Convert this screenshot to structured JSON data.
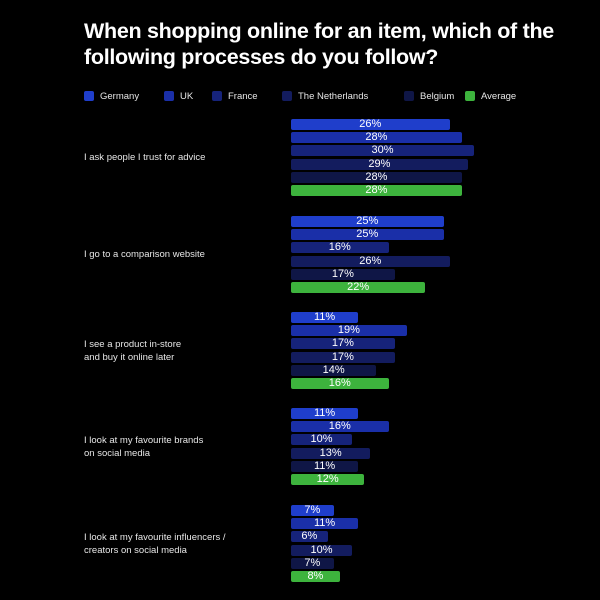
{
  "chart_data": {
    "type": "bar",
    "title": "When shopping online for an item, which of the following processes do you follow?",
    "categories": [
      "I ask people I trust for advice",
      "I go to a comparison website",
      "I see a product in-store\nand buy it online later",
      "I look at my favourite brands\non social media",
      "I look at my favourite influencers /\ncreators on social media"
    ],
    "series": [
      {
        "name": "Germany",
        "color": "#1f3ecb",
        "values": [
          26,
          25,
          11,
          11,
          7
        ],
        "labels": [
          "26%",
          "25%",
          "11%",
          "11%",
          "7%"
        ]
      },
      {
        "name": "UK",
        "color": "#1a2fa8",
        "values": [
          28,
          25,
          19,
          16,
          11
        ],
        "labels": [
          "28%",
          "25%",
          "19%",
          "16%",
          "11%"
        ]
      },
      {
        "name": "France",
        "color": "#16237a",
        "values": [
          30,
          16,
          17,
          10,
          6
        ],
        "labels": [
          "30%",
          "16%",
          "17%",
          "10%",
          "6%"
        ]
      },
      {
        "name": "The Netherlands",
        "color": "#131c5e",
        "values": [
          29,
          26,
          17,
          13,
          10
        ],
        "labels": [
          "29%",
          "26%",
          "17%",
          "13%",
          "10%"
        ]
      },
      {
        "name": "Belgium",
        "color": "#0f1646",
        "values": [
          28,
          17,
          14,
          11,
          7
        ],
        "labels": [
          "28%",
          "17%",
          "14%",
          "11%",
          "7%"
        ]
      },
      {
        "name": "Average",
        "color": "#3db33d",
        "values": [
          28,
          22,
          16,
          12,
          8
        ],
        "labels": [
          "28%",
          "22%",
          "16%",
          "12%",
          "8%"
        ]
      }
    ],
    "orientation": "horizontal",
    "legend": "top",
    "grid": false
  }
}
